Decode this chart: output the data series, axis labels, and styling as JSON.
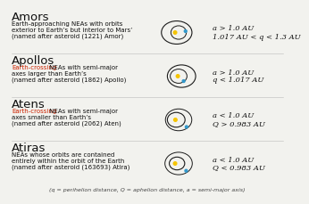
{
  "bg_color": "#f2f2ee",
  "groups": [
    {
      "name": "Amors",
      "desc_lines": [
        "Earth-approaching NEAs with orbits",
        "exterior to Earth’s but interior to Mars’",
        "(named after asteroid (1221) Amor)"
      ],
      "desc_red": "",
      "formula_line1": "a > 1.0 AU",
      "formula_line2": "1.017 AU < q < 1.3 AU",
      "orbit_type": "amor"
    },
    {
      "name": "Apollos",
      "desc_lines": [
        " NEAs with semi-major",
        "axes larger than Earth’s",
        "(named after asteroid (1862) Apollo)"
      ],
      "desc_red": "Earth-crossing",
      "formula_line1": "a > 1.0 AU",
      "formula_line2": "q < 1.017 AU",
      "orbit_type": "apollo"
    },
    {
      "name": "Atens",
      "desc_lines": [
        " NEAs with semi-major",
        "axes smaller than Earth’s",
        "(named after asteroid (2062) Aten)"
      ],
      "desc_red": "Earth-crossing",
      "formula_line1": "a < 1.0 AU",
      "formula_line2": "Q > 0.983 AU",
      "orbit_type": "aten"
    },
    {
      "name": "Atiras",
      "desc_lines": [
        "NEAs whose orbits are contained",
        "entirely within the orbit of the Earth",
        "(named after asteroid (163693) Atira)"
      ],
      "desc_red": "",
      "formula_line1": "a < 1.0 AU",
      "formula_line2": "Q < 0.983 AU",
      "orbit_type": "atira"
    }
  ],
  "footer": "(q = perihelion distance, Q = aphelion distance, a = semi-major axis)",
  "sun_color": "#F5C400",
  "earth_color": "#3399CC",
  "orbit_color": "#1a1a1a",
  "title_fontsize": 9.5,
  "desc_fontsize": 5.0,
  "formula_fontsize": 6.0,
  "footer_fontsize": 4.5,
  "red_color": "#CC2200"
}
